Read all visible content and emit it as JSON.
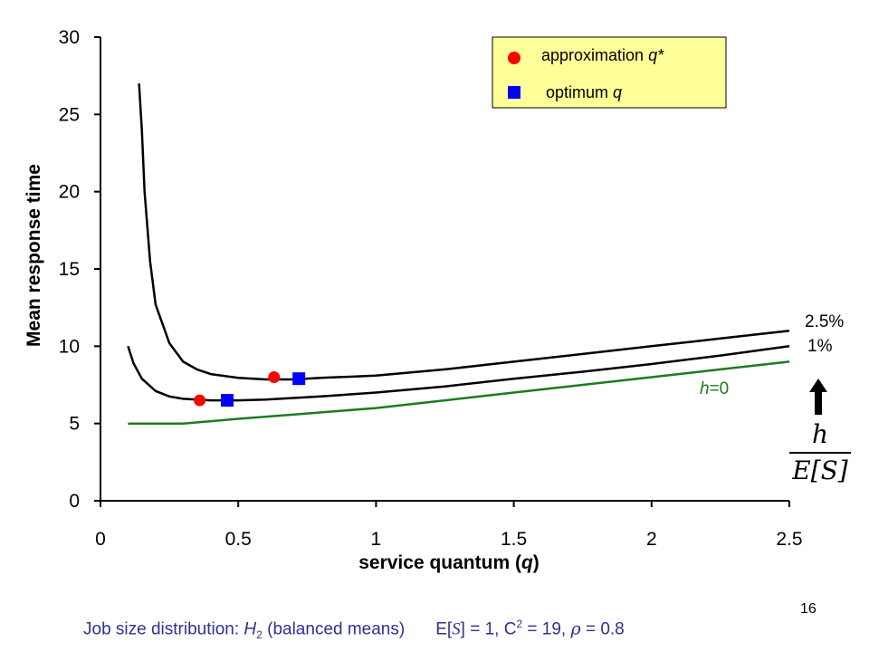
{
  "chart_data": {
    "type": "line",
    "xlabel": "service quantum (q)",
    "ylabel": "Mean response time",
    "xlim": [
      0,
      2.5
    ],
    "ylim": [
      0,
      30
    ],
    "x_ticks": [
      "0",
      "0.5",
      "1",
      "1.5",
      "2",
      "2.5"
    ],
    "y_ticks": [
      "0",
      "5",
      "10",
      "15",
      "20",
      "25",
      "30"
    ],
    "grid": false,
    "series": [
      {
        "name": "2.5%",
        "color": "#000000",
        "points": [
          [
            0.14,
            27.0
          ],
          [
            0.15,
            24.0
          ],
          [
            0.16,
            20.0
          ],
          [
            0.18,
            15.5
          ],
          [
            0.2,
            12.7
          ],
          [
            0.25,
            10.2
          ],
          [
            0.3,
            9.0
          ],
          [
            0.35,
            8.5
          ],
          [
            0.4,
            8.2
          ],
          [
            0.5,
            7.95
          ],
          [
            0.6,
            7.85
          ],
          [
            0.7,
            7.85
          ],
          [
            0.8,
            7.95
          ],
          [
            1.0,
            8.1
          ],
          [
            1.25,
            8.5
          ],
          [
            1.5,
            9.0
          ],
          [
            1.75,
            9.5
          ],
          [
            2.0,
            10.0
          ],
          [
            2.25,
            10.5
          ],
          [
            2.5,
            11.0
          ]
        ]
      },
      {
        "name": "1%",
        "color": "#000000",
        "points": [
          [
            0.1,
            10.0
          ],
          [
            0.12,
            8.9
          ],
          [
            0.15,
            7.9
          ],
          [
            0.2,
            7.1
          ],
          [
            0.25,
            6.75
          ],
          [
            0.3,
            6.6
          ],
          [
            0.4,
            6.5
          ],
          [
            0.5,
            6.5
          ],
          [
            0.6,
            6.55
          ],
          [
            0.8,
            6.75
          ],
          [
            1.0,
            7.0
          ],
          [
            1.25,
            7.4
          ],
          [
            1.5,
            7.9
          ],
          [
            1.75,
            8.35
          ],
          [
            2.0,
            8.85
          ],
          [
            2.25,
            9.4
          ],
          [
            2.5,
            10.0
          ]
        ]
      },
      {
        "name": "h=0",
        "color": "#1f7a1f",
        "points": [
          [
            0.1,
            5.0
          ],
          [
            0.3,
            5.0
          ],
          [
            0.5,
            5.3
          ],
          [
            0.75,
            5.65
          ],
          [
            1.0,
            6.0
          ],
          [
            1.25,
            6.5
          ],
          [
            1.5,
            7.0
          ],
          [
            1.75,
            7.5
          ],
          [
            2.0,
            8.0
          ],
          [
            2.25,
            8.5
          ],
          [
            2.5,
            9.0
          ]
        ]
      }
    ],
    "markers": [
      {
        "series": "approximation q*",
        "shape": "circle",
        "color": "#ff0000",
        "x": 0.36,
        "y": 6.5
      },
      {
        "series": "optimum q",
        "shape": "square",
        "color": "#0000ff",
        "x": 0.46,
        "y": 6.5
      },
      {
        "series": "approximation q*",
        "shape": "circle",
        "color": "#ff0000",
        "x": 0.63,
        "y": 8.0
      },
      {
        "series": "optimum q",
        "shape": "square",
        "color": "#0000ff",
        "x": 0.72,
        "y": 7.9
      }
    ],
    "legend": {
      "placement": "top-right",
      "background": "#ffff99",
      "entries": [
        {
          "label": "approximation q*",
          "shape": "circle",
          "color": "#ff0000"
        },
        {
          "label": "optimum q",
          "shape": "square",
          "color": "#0000ff"
        }
      ]
    },
    "annotations": {
      "curve_labels": [
        "2.5%",
        "1%",
        "h=0"
      ],
      "arrow": "up",
      "fraction_numerator": "h",
      "fraction_denominator": "E[S]"
    }
  },
  "caption": {
    "prefix": "Job size distribution: ",
    "dist_letter": "H",
    "dist_sub": "2",
    "dist_rest": " (balanced means)",
    "e_text": "E[",
    "e_var": "S",
    "e_rest": "] = 1, C",
    "c_sup": "2",
    "c_rest": " = 19, ",
    "rho": "ρ",
    "rho_rest": " = 0.8"
  },
  "slide_number": "16"
}
